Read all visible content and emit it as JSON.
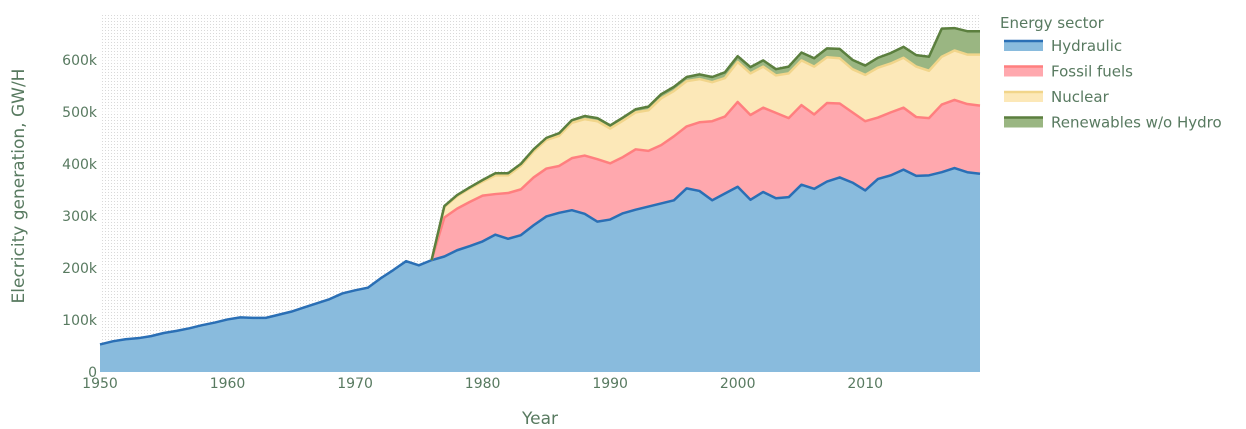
{
  "chart_data": {
    "type": "area",
    "stacked": true,
    "xlabel": "Year",
    "ylabel": "Elecricity generation, GW/H",
    "xlim": [
      1950,
      2019
    ],
    "ylim": [
      0,
      690000
    ],
    "x_ticks": [
      1950,
      1960,
      1970,
      1980,
      1990,
      2000,
      2010
    ],
    "x_tick_labels": [
      "1950",
      "1960",
      "1970",
      "1980",
      "1990",
      "2000",
      "2010"
    ],
    "y_ticks": [
      0,
      100000,
      200000,
      300000,
      400000,
      500000,
      600000
    ],
    "y_tick_labels": [
      "0",
      "100k",
      "200k",
      "300k",
      "400k",
      "500k",
      "600k"
    ],
    "legend": {
      "title": "Energy sector",
      "position": "right"
    },
    "x": [
      1950,
      1951,
      1952,
      1953,
      1954,
      1955,
      1956,
      1957,
      1958,
      1959,
      1960,
      1961,
      1962,
      1963,
      1964,
      1965,
      1966,
      1967,
      1968,
      1969,
      1970,
      1971,
      1972,
      1973,
      1974,
      1975,
      1976,
      1977,
      1978,
      1979,
      1980,
      1981,
      1982,
      1983,
      1984,
      1985,
      1986,
      1987,
      1988,
      1989,
      1990,
      1991,
      1992,
      1993,
      1994,
      1995,
      1996,
      1997,
      1998,
      1999,
      2000,
      2001,
      2002,
      2003,
      2004,
      2005,
      2006,
      2007,
      2008,
      2009,
      2010,
      2011,
      2012,
      2013,
      2014,
      2015,
      2016,
      2017,
      2018,
      2019
    ],
    "series": [
      {
        "name": "Hydraulic",
        "line_color": "#2a6fb5",
        "fill_color": "#89bbdd",
        "values": [
          53000,
          59000,
          63000,
          65000,
          69000,
          75000,
          79000,
          84000,
          90000,
          95000,
          101000,
          105000,
          104000,
          104000,
          110000,
          116000,
          124000,
          132000,
          140000,
          151000,
          157000,
          162000,
          180000,
          196000,
          213000,
          205000,
          215000,
          222000,
          234000,
          242000,
          251000,
          264000,
          256000,
          263000,
          282000,
          299000,
          306000,
          311000,
          304000,
          289000,
          293000,
          305000,
          312000,
          318000,
          324000,
          330000,
          353000,
          348000,
          330000,
          343000,
          356000,
          331000,
          346000,
          334000,
          336000,
          360000,
          352000,
          366000,
          374000,
          364000,
          349000,
          371000,
          378000,
          389000,
          377000,
          378000,
          384000,
          392000,
          384000,
          381000
        ]
      },
      {
        "name": "Fossil fuels",
        "line_color": "#ff7f7f",
        "fill_color": "#ffa8ae",
        "values": [
          0,
          0,
          0,
          0,
          0,
          0,
          0,
          0,
          0,
          0,
          0,
          0,
          0,
          0,
          0,
          0,
          0,
          0,
          0,
          0,
          0,
          0,
          0,
          0,
          0,
          0,
          0,
          75000,
          80000,
          85000,
          88000,
          78000,
          88000,
          88000,
          92000,
          92000,
          90000,
          100000,
          112000,
          120000,
          108000,
          108000,
          116000,
          107000,
          112000,
          123000,
          119000,
          132000,
          152000,
          148000,
          163000,
          163000,
          162000,
          164000,
          152000,
          153000,
          143000,
          151000,
          142000,
          135000,
          133000,
          118000,
          121000,
          119000,
          113000,
          110000,
          130000,
          131000,
          131000,
          131000
        ]
      },
      {
        "name": "Nuclear",
        "line_color": "#f1d58a",
        "fill_color": "#fce8b8",
        "values": [
          0,
          0,
          0,
          0,
          0,
          0,
          0,
          0,
          0,
          0,
          0,
          0,
          0,
          0,
          0,
          0,
          0,
          0,
          0,
          0,
          0,
          0,
          0,
          0,
          0,
          0,
          0,
          20000,
          24000,
          26000,
          27000,
          36000,
          34000,
          45000,
          50000,
          55000,
          58000,
          68000,
          70000,
          73000,
          67000,
          70000,
          71000,
          78000,
          90000,
          87000,
          87000,
          83000,
          75000,
          74000,
          77000,
          80000,
          79000,
          72000,
          86000,
          86000,
          92000,
          88000,
          87000,
          83000,
          89000,
          96000,
          94000,
          96000,
          97000,
          91000,
          92000,
          95000,
          95000,
          98000
        ]
      },
      {
        "name": "Renewables w/o Hydro",
        "line_color": "#5b7f3e",
        "fill_color": "#9ab682",
        "values": [
          0,
          0,
          0,
          0,
          0,
          0,
          0,
          0,
          0,
          0,
          0,
          0,
          0,
          0,
          0,
          0,
          0,
          0,
          0,
          0,
          0,
          0,
          0,
          0,
          0,
          0,
          0,
          2000,
          2000,
          2000,
          3000,
          4000,
          4000,
          4000,
          4000,
          4000,
          5000,
          5000,
          6000,
          6000,
          6000,
          6000,
          6000,
          7000,
          8000,
          8000,
          8000,
          9000,
          10000,
          11000,
          11000,
          12000,
          12000,
          12000,
          13000,
          15000,
          16000,
          17000,
          18000,
          18000,
          18000,
          19000,
          20000,
          21000,
          22000,
          27000,
          54000,
          43000,
          45000,
          45000
        ]
      }
    ]
  }
}
